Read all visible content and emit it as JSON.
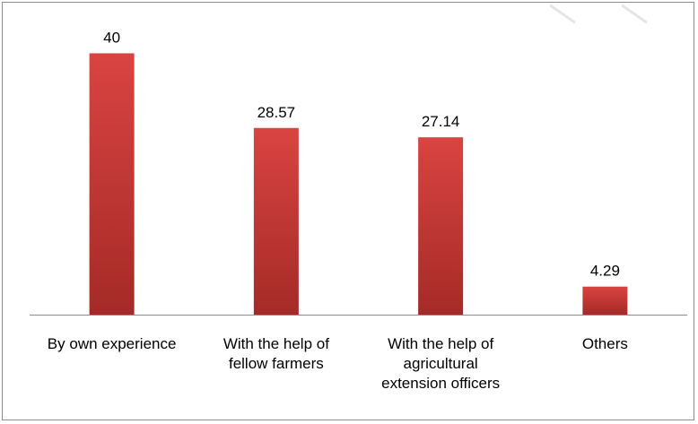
{
  "chart_data": {
    "type": "bar",
    "categories": [
      "By own experience",
      "With the help of fellow farmers",
      "With the help of agricultural extension officers",
      "Others"
    ],
    "category_lines": [
      [
        "By own experience"
      ],
      [
        "With the help of",
        "fellow farmers"
      ],
      [
        "With the help of",
        "agricultural",
        "extension officers"
      ],
      [
        "Others"
      ]
    ],
    "values": [
      40,
      28.57,
      27.14,
      4.29
    ],
    "data_labels": [
      "40",
      "28.57",
      "27.14",
      "4.29"
    ],
    "ylim": [
      0,
      45
    ],
    "title": "",
    "xlabel": "",
    "ylabel": "",
    "grid": false,
    "legend": "none",
    "colors": {
      "bar_top": "#d94441",
      "bar_bottom": "#a52a27",
      "axis": "#8c8c8c",
      "frame": "#8c8c8c"
    }
  }
}
